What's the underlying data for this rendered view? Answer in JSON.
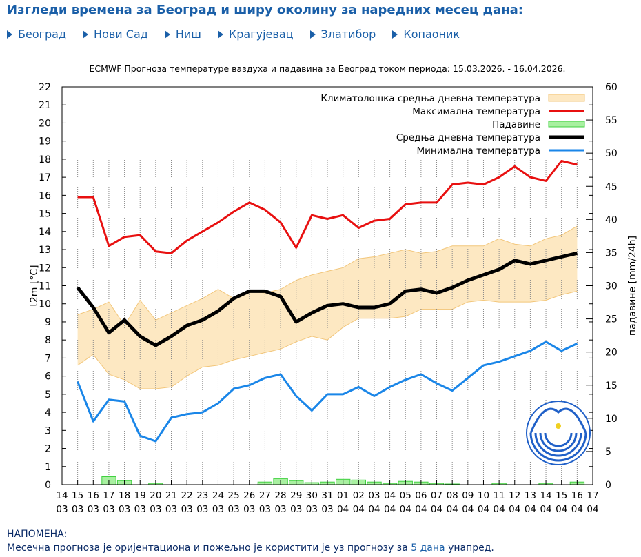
{
  "header": {
    "title": "Изгледи времена за Београд и ширу околину за наредних месец дана:"
  },
  "nav": [
    {
      "label": "Београд"
    },
    {
      "label": "Нови Сад"
    },
    {
      "label": "Ниш"
    },
    {
      "label": "Крагујевац"
    },
    {
      "label": "Златибор"
    },
    {
      "label": "Копаоник"
    }
  ],
  "note": {
    "heading": "НАПОМЕНА:",
    "text_before": "Месечна прогноза је оријентациона и пожељно је користити је уз прогнозу за ",
    "link": "5 дана",
    "text_after": " унапред."
  },
  "colors": {
    "accent": "#1a5fa8",
    "max": "#e81010",
    "min": "#1a86e8",
    "mean": "#000000",
    "clim_fill": "#fde8c2",
    "clim_edge": "#f2c67a",
    "precip_fill": "#a8f0a0",
    "precip_edge": "#40d040"
  },
  "chart_data": {
    "type": "line",
    "title": "ECMWF Прогноза температуре ваздуха и падавина за Београд током периода: 15.03.2026. - 16.04.2026.",
    "ylabel": "t2m [°C]",
    "ylabel_right": "падавине [mm/24h]",
    "ylim": [
      0,
      22
    ],
    "ylim_right": [
      0,
      60
    ],
    "yticks": [
      0,
      1,
      2,
      3,
      4,
      5,
      6,
      7,
      8,
      9,
      10,
      11,
      12,
      13,
      14,
      15,
      16,
      17,
      18,
      19,
      20,
      21,
      22
    ],
    "yticks_right": [
      0,
      5,
      10,
      15,
      20,
      25,
      30,
      35,
      40,
      45,
      50,
      55,
      60
    ],
    "x_tick_top": [
      "14",
      "15",
      "16",
      "17",
      "18",
      "19",
      "20",
      "21",
      "22",
      "23",
      "24",
      "25",
      "26",
      "27",
      "28",
      "29",
      "30",
      "31",
      "01",
      "02",
      "03",
      "04",
      "05",
      "06",
      "07",
      "08",
      "09",
      "10",
      "11",
      "12",
      "13",
      "14",
      "15",
      "16",
      "17"
    ],
    "x_tick_bottom": [
      "03",
      "03",
      "03",
      "03",
      "03",
      "03",
      "03",
      "03",
      "03",
      "03",
      "03",
      "03",
      "03",
      "03",
      "03",
      "03",
      "03",
      "03",
      "04",
      "04",
      "04",
      "04",
      "04",
      "04",
      "04",
      "04",
      "04",
      "04",
      "04",
      "04",
      "04",
      "04",
      "04",
      "04",
      "04"
    ],
    "legend": [
      "Климатолошка средња дневна температура",
      "Максимална температура",
      "Падавине",
      "Средња дневна температура",
      "Минимална температура"
    ],
    "series": [
      {
        "name": "Максимална температура",
        "values": [
          15.9,
          15.9,
          13.2,
          13.7,
          13.8,
          12.9,
          12.8,
          13.5,
          14.0,
          14.5,
          15.1,
          15.6,
          15.2,
          14.5,
          13.1,
          14.9,
          14.7,
          14.9,
          14.2,
          14.6,
          14.7,
          15.5,
          15.6,
          15.6,
          16.6,
          16.7,
          16.6,
          17.0,
          17.6,
          17.0,
          16.8,
          17.9,
          17.7
        ]
      },
      {
        "name": "Средња дневна температура",
        "values": [
          10.9,
          9.8,
          8.4,
          9.1,
          8.2,
          7.7,
          8.2,
          8.8,
          9.1,
          9.6,
          10.3,
          10.7,
          10.7,
          10.4,
          9.0,
          9.5,
          9.9,
          10.0,
          9.8,
          9.8,
          10.0,
          10.7,
          10.8,
          10.6,
          10.9,
          11.3,
          11.6,
          11.9,
          12.4,
          12.2,
          12.4,
          12.6,
          12.8
        ]
      },
      {
        "name": "Минимална температура",
        "values": [
          5.7,
          3.5,
          4.7,
          4.6,
          2.7,
          2.4,
          3.7,
          3.9,
          4.0,
          4.5,
          5.3,
          5.5,
          5.9,
          6.1,
          4.9,
          4.1,
          5.0,
          5.0,
          5.4,
          4.9,
          5.4,
          5.8,
          6.1,
          5.6,
          5.2,
          5.9,
          6.6,
          6.8,
          7.1,
          7.4,
          7.9,
          7.4,
          7.8
        ]
      },
      {
        "name": "Климатолошка средња дневна температура (горња граница)",
        "values": [
          9.4,
          9.7,
          10.1,
          8.8,
          10.2,
          9.1,
          9.5,
          9.9,
          10.3,
          10.8,
          10.3,
          10.7,
          10.6,
          10.8,
          11.3,
          11.6,
          11.8,
          12.0,
          12.5,
          12.6,
          12.8,
          13.0,
          12.8,
          12.9,
          13.2,
          13.2,
          13.2,
          13.6,
          13.3,
          13.2,
          13.6,
          13.8,
          14.3
        ]
      },
      {
        "name": "Климатолошка средња дневна температура (доња граница)",
        "values": [
          6.6,
          7.2,
          6.1,
          5.8,
          5.3,
          5.3,
          5.4,
          6.0,
          6.5,
          6.6,
          6.9,
          7.1,
          7.3,
          7.5,
          7.9,
          8.2,
          8.0,
          8.7,
          9.2,
          9.2,
          9.2,
          9.3,
          9.7,
          9.7,
          9.7,
          10.1,
          10.2,
          10.1,
          10.1,
          10.1,
          10.2,
          10.5,
          10.7
        ]
      },
      {
        "name": "Падавине",
        "values": [
          0,
          0,
          1.2,
          0.6,
          0,
          0.2,
          0,
          0,
          0,
          0,
          0,
          0,
          0.4,
          0.9,
          0.6,
          0.3,
          0.4,
          0.8,
          0.7,
          0.4,
          0.2,
          0.5,
          0.4,
          0.2,
          0.1,
          0,
          0,
          0.2,
          0,
          0,
          0.2,
          0,
          0.4
        ]
      }
    ]
  }
}
